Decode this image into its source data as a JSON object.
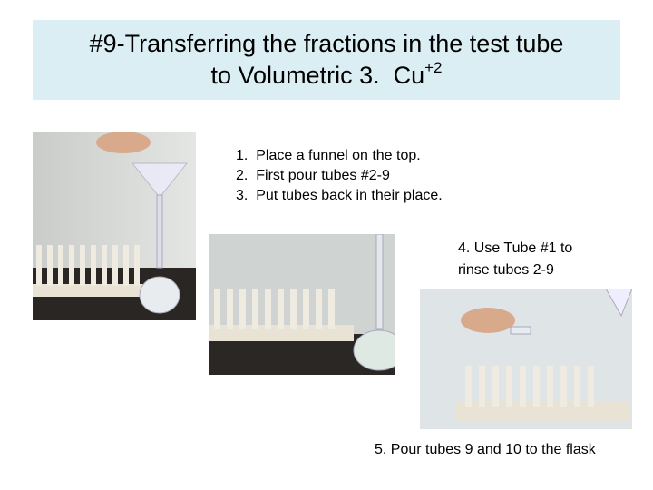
{
  "title": {
    "line1": "#9-Transferring the fractions in the test tube",
    "line2": "to Volumetric 3.  Cu",
    "superscript": "+2"
  },
  "steps": [
    "1.  Place a funnel on the top.",
    "2.  First pour tubes #2-9",
    "3.  Put tubes back in their place."
  ],
  "step4": [
    "4. Use Tube #1 to",
    "rinse tubes 2-9"
  ],
  "step5": "5. Pour tubes 9 and 10 to the flask"
}
